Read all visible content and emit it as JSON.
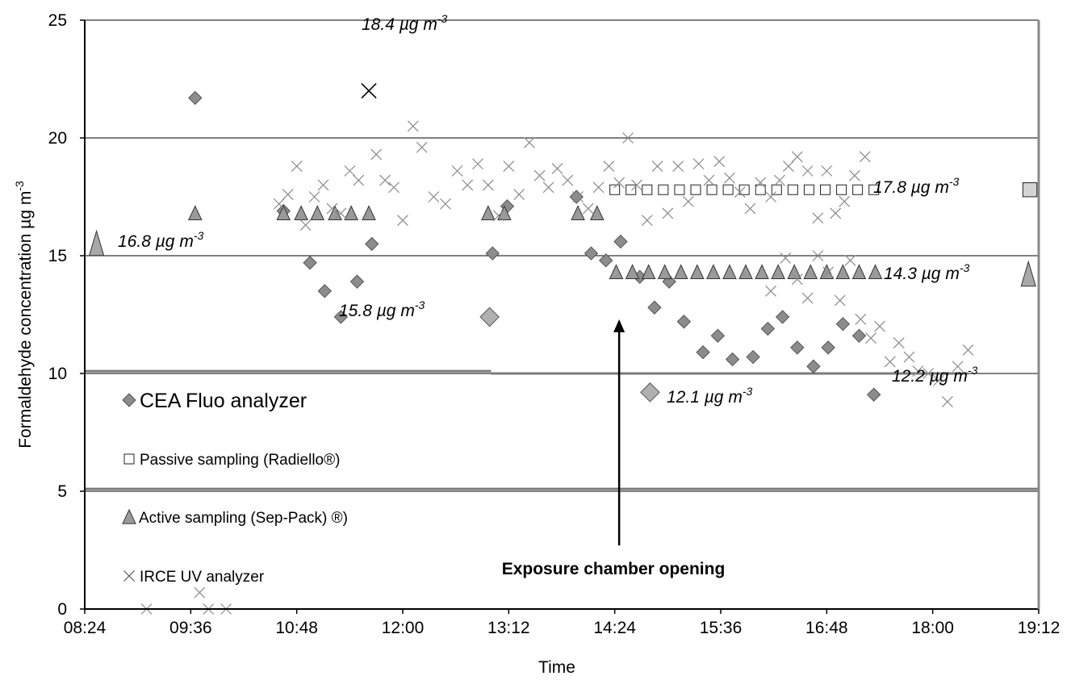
{
  "chart_data": {
    "type": "scatter",
    "title": "",
    "xlabel": "Time",
    "ylabel": "Formaldehyde concentration µg m",
    "ylabel_superscript": "-3",
    "x_unit": "time of day (HH:MM)",
    "xlim": [
      "08:24",
      "19:12"
    ],
    "ylim": [
      0,
      25
    ],
    "x_ticks": [
      "08:24",
      "09:36",
      "10:48",
      "12:00",
      "13:12",
      "14:24",
      "15:36",
      "16:48",
      "18:00",
      "19:12"
    ],
    "y_ticks": [
      "0",
      "5",
      "10",
      "15",
      "20",
      "25"
    ],
    "grid": "horizontal",
    "legend_position": "bottom-left, inside plot",
    "series": [
      {
        "name": "CEA Fluo analyzer",
        "marker": "diamond",
        "color": "#8c8c8c",
        "points": [
          [
            "09:39",
            21.7
          ],
          [
            "10:39",
            16.9
          ],
          [
            "10:57",
            14.7
          ],
          [
            "11:07",
            13.5
          ],
          [
            "11:18",
            12.4
          ],
          [
            "11:29",
            13.9
          ],
          [
            "11:39",
            15.5
          ],
          [
            "13:01",
            15.1
          ],
          [
            "13:11",
            17.1
          ],
          [
            "13:58",
            17.5
          ],
          [
            "14:08",
            15.1
          ],
          [
            "14:18",
            14.8
          ],
          [
            "14:28",
            15.6
          ],
          [
            "14:41",
            14.1
          ],
          [
            "14:51",
            12.8
          ],
          [
            "15:01",
            13.9
          ],
          [
            "15:11",
            12.2
          ],
          [
            "15:24",
            10.9
          ],
          [
            "15:34",
            11.6
          ],
          [
            "15:44",
            10.6
          ],
          [
            "15:58",
            10.7
          ],
          [
            "16:08",
            11.9
          ],
          [
            "16:18",
            12.4
          ],
          [
            "16:28",
            11.1
          ],
          [
            "16:39",
            10.3
          ],
          [
            "16:49",
            11.1
          ],
          [
            "16:59",
            12.1
          ],
          [
            "17:10",
            11.6
          ],
          [
            "17:20",
            9.1
          ]
        ]
      },
      {
        "name": "Passive sampling (Radiello®)",
        "marker": "square",
        "color": "#ffffff",
        "points": [
          [
            "14:24",
            17.8
          ],
          [
            "14:35",
            17.8
          ],
          [
            "14:46",
            17.8
          ],
          [
            "14:57",
            17.8
          ],
          [
            "15:08",
            17.8
          ],
          [
            "15:19",
            17.8
          ],
          [
            "15:30",
            17.8
          ],
          [
            "15:41",
            17.8
          ],
          [
            "15:52",
            17.8
          ],
          [
            "16:03",
            17.8
          ],
          [
            "16:14",
            17.8
          ],
          [
            "16:25",
            17.8
          ],
          [
            "16:36",
            17.8
          ],
          [
            "16:47",
            17.8
          ],
          [
            "16:58",
            17.8
          ],
          [
            "17:09",
            17.8
          ],
          [
            "17:20",
            17.8
          ]
        ]
      },
      {
        "name": "Active sampling (Sep-Pack) ®)",
        "marker": "triangle",
        "color": "#9a9a9a",
        "points": [
          [
            "09:39",
            16.8
          ],
          [
            "10:39",
            16.8
          ],
          [
            "10:51",
            16.8
          ],
          [
            "11:02",
            16.8
          ],
          [
            "11:14",
            16.8
          ],
          [
            "11:25",
            16.8
          ],
          [
            "11:37",
            16.8
          ],
          [
            "12:58",
            16.8
          ],
          [
            "13:09",
            16.8
          ],
          [
            "13:59",
            16.8
          ],
          [
            "14:12",
            16.8
          ],
          [
            "14:25",
            14.3
          ],
          [
            "14:36",
            14.3
          ],
          [
            "14:47",
            14.3
          ],
          [
            "14:58",
            14.3
          ],
          [
            "15:09",
            14.3
          ],
          [
            "15:20",
            14.3
          ],
          [
            "15:31",
            14.3
          ],
          [
            "15:42",
            14.3
          ],
          [
            "15:53",
            14.3
          ],
          [
            "16:04",
            14.3
          ],
          [
            "16:15",
            14.3
          ],
          [
            "16:26",
            14.3
          ],
          [
            "16:37",
            14.3
          ],
          [
            "16:48",
            14.3
          ],
          [
            "16:59",
            14.3
          ],
          [
            "17:10",
            14.3
          ],
          [
            "17:21",
            14.3
          ]
        ]
      },
      {
        "name": "IRCE UV analyzer",
        "marker": "x",
        "color": "#8a8a8a",
        "points": [
          [
            "09:06",
            0.0
          ],
          [
            "09:42",
            0.7
          ],
          [
            "09:48",
            0.0
          ],
          [
            "10:00",
            0.0
          ],
          [
            "10:36",
            17.2
          ],
          [
            "10:42",
            17.6
          ],
          [
            "10:48",
            18.8
          ],
          [
            "10:54",
            16.3
          ],
          [
            "11:00",
            17.5
          ],
          [
            "11:06",
            18.0
          ],
          [
            "11:12",
            17.0
          ],
          [
            "11:18",
            16.8
          ],
          [
            "11:24",
            18.6
          ],
          [
            "11:30",
            18.2
          ],
          [
            "11:42",
            19.3
          ],
          [
            "11:48",
            18.2
          ],
          [
            "11:54",
            17.9
          ],
          [
            "12:00",
            16.5
          ],
          [
            "12:07",
            20.5
          ],
          [
            "12:13",
            19.6
          ],
          [
            "12:21",
            17.5
          ],
          [
            "12:29",
            17.2
          ],
          [
            "12:37",
            18.6
          ],
          [
            "12:44",
            18.0
          ],
          [
            "12:51",
            18.9
          ],
          [
            "12:58",
            18.0
          ],
          [
            "13:05",
            16.7
          ],
          [
            "13:12",
            18.8
          ],
          [
            "13:19",
            17.6
          ],
          [
            "13:26",
            19.8
          ],
          [
            "13:33",
            18.4
          ],
          [
            "13:39",
            17.9
          ],
          [
            "13:45",
            18.7
          ],
          [
            "13:52",
            18.2
          ],
          [
            "13:59",
            17.5
          ],
          [
            "14:06",
            17.0
          ],
          [
            "14:13",
            17.9
          ],
          [
            "14:20",
            18.8
          ],
          [
            "14:27",
            18.1
          ],
          [
            "14:33",
            20.0
          ],
          [
            "14:39",
            18.0
          ],
          [
            "14:46",
            16.5
          ],
          [
            "14:53",
            18.8
          ],
          [
            "15:00",
            16.8
          ],
          [
            "15:07",
            18.8
          ],
          [
            "15:14",
            17.3
          ],
          [
            "15:21",
            18.9
          ],
          [
            "15:28",
            18.2
          ],
          [
            "15:35",
            19.0
          ],
          [
            "15:42",
            18.3
          ],
          [
            "15:49",
            17.7
          ],
          [
            "15:56",
            17.0
          ],
          [
            "16:03",
            18.1
          ],
          [
            "16:10",
            17.5
          ],
          [
            "16:16",
            18.2
          ],
          [
            "16:22",
            18.8
          ],
          [
            "16:28",
            19.2
          ],
          [
            "16:35",
            18.6
          ],
          [
            "16:42",
            16.6
          ],
          [
            "16:48",
            18.6
          ],
          [
            "16:54",
            16.8
          ],
          [
            "17:00",
            17.3
          ],
          [
            "17:07",
            18.4
          ],
          [
            "17:14",
            19.2
          ],
          [
            "16:10",
            13.5
          ],
          [
            "16:20",
            14.9
          ],
          [
            "16:28",
            14.0
          ],
          [
            "16:35",
            13.2
          ],
          [
            "16:42",
            15.0
          ],
          [
            "16:49",
            14.3
          ],
          [
            "16:57",
            13.1
          ],
          [
            "17:04",
            14.8
          ],
          [
            "17:11",
            12.3
          ],
          [
            "17:18",
            11.5
          ],
          [
            "17:24",
            12.0
          ],
          [
            "17:31",
            10.5
          ],
          [
            "17:37",
            11.3
          ],
          [
            "17:44",
            10.7
          ],
          [
            "17:50",
            10.1
          ],
          [
            "17:57",
            10.0
          ],
          [
            "18:04",
            9.7
          ],
          [
            "18:10",
            8.8
          ],
          [
            "18:17",
            10.3
          ],
          [
            "18:24",
            11.0
          ]
        ]
      },
      {
        "name": "",
        "marker": "x",
        "color": "#000000",
        "points": [
          [
            "11:37",
            22.0
          ]
        ]
      },
      {
        "name": "",
        "marker": "diamond",
        "color": "#b0b0b0",
        "points": [
          [
            "12:59",
            12.4
          ],
          [
            "14:48",
            9.2
          ]
        ]
      },
      {
        "name": "",
        "marker": "square",
        "color": "#d4d4d4",
        "points": [
          [
            "19:06",
            17.8
          ]
        ]
      },
      {
        "name": "",
        "marker": "triangle",
        "color": "#a8a8a8",
        "points": [
          [
            "08:32",
            15.5
          ],
          [
            "19:05",
            14.2
          ]
        ]
      }
    ],
    "annotations": [
      {
        "text": "18.4 µg m",
        "sup": "-3"
      },
      {
        "text": "16.8 µg m",
        "sup": "-3"
      },
      {
        "text": "15.8 µg m",
        "sup": "-3"
      },
      {
        "text": "12.1 µg m",
        "sup": "-3"
      },
      {
        "text": "12.2 µg m",
        "sup": "-3"
      },
      {
        "text": "17.8 µg m",
        "sup": "-3"
      },
      {
        "text": "14.3 µg m",
        "sup": "-3"
      }
    ],
    "callout": {
      "text": "Exposure chamber opening",
      "x": "14:27",
      "y_arrow_tip": 12.3
    },
    "reference_lines": [
      {
        "y": 10.1,
        "from": "08:24",
        "to": "13:00"
      },
      {
        "y": 10.0,
        "from": "13:00",
        "to": "18:24"
      },
      {
        "y": 5.1,
        "from": "08:24",
        "to": "19:12"
      }
    ]
  }
}
